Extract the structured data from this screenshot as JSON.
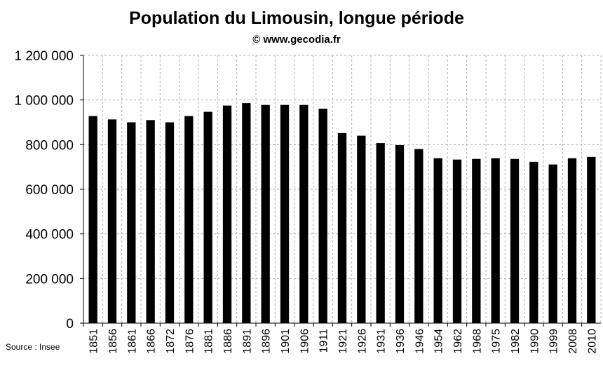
{
  "chart_data": {
    "type": "bar",
    "title": "Population du Limousin, longue période",
    "subtitle": "© www.gecodia.fr",
    "source": "Source : Insee",
    "xlabel": "",
    "ylabel": "",
    "ylim": [
      0,
      1200000
    ],
    "yticks": [
      0,
      200000,
      400000,
      600000,
      800000,
      1000000,
      1200000
    ],
    "ytick_labels": [
      "0",
      "200 000",
      "400 000",
      "600 000",
      "800 000",
      "1 000 000",
      "1 200 000"
    ],
    "grid": true,
    "bar_color": "#000000",
    "categories": [
      "1851",
      "1856",
      "1861",
      "1866",
      "1872",
      "1876",
      "1881",
      "1886",
      "1891",
      "1896",
      "1901",
      "1906",
      "1911",
      "1921",
      "1926",
      "1931",
      "1936",
      "1946",
      "1954",
      "1962",
      "1968",
      "1975",
      "1982",
      "1990",
      "1999",
      "2008",
      "2010"
    ],
    "values": [
      928000,
      913000,
      900000,
      910000,
      900000,
      928000,
      947000,
      975000,
      986000,
      978000,
      978000,
      978000,
      961000,
      852000,
      840000,
      807000,
      798000,
      780000,
      739000,
      733000,
      736000,
      739000,
      736000,
      723000,
      711000,
      739000,
      745000
    ]
  }
}
